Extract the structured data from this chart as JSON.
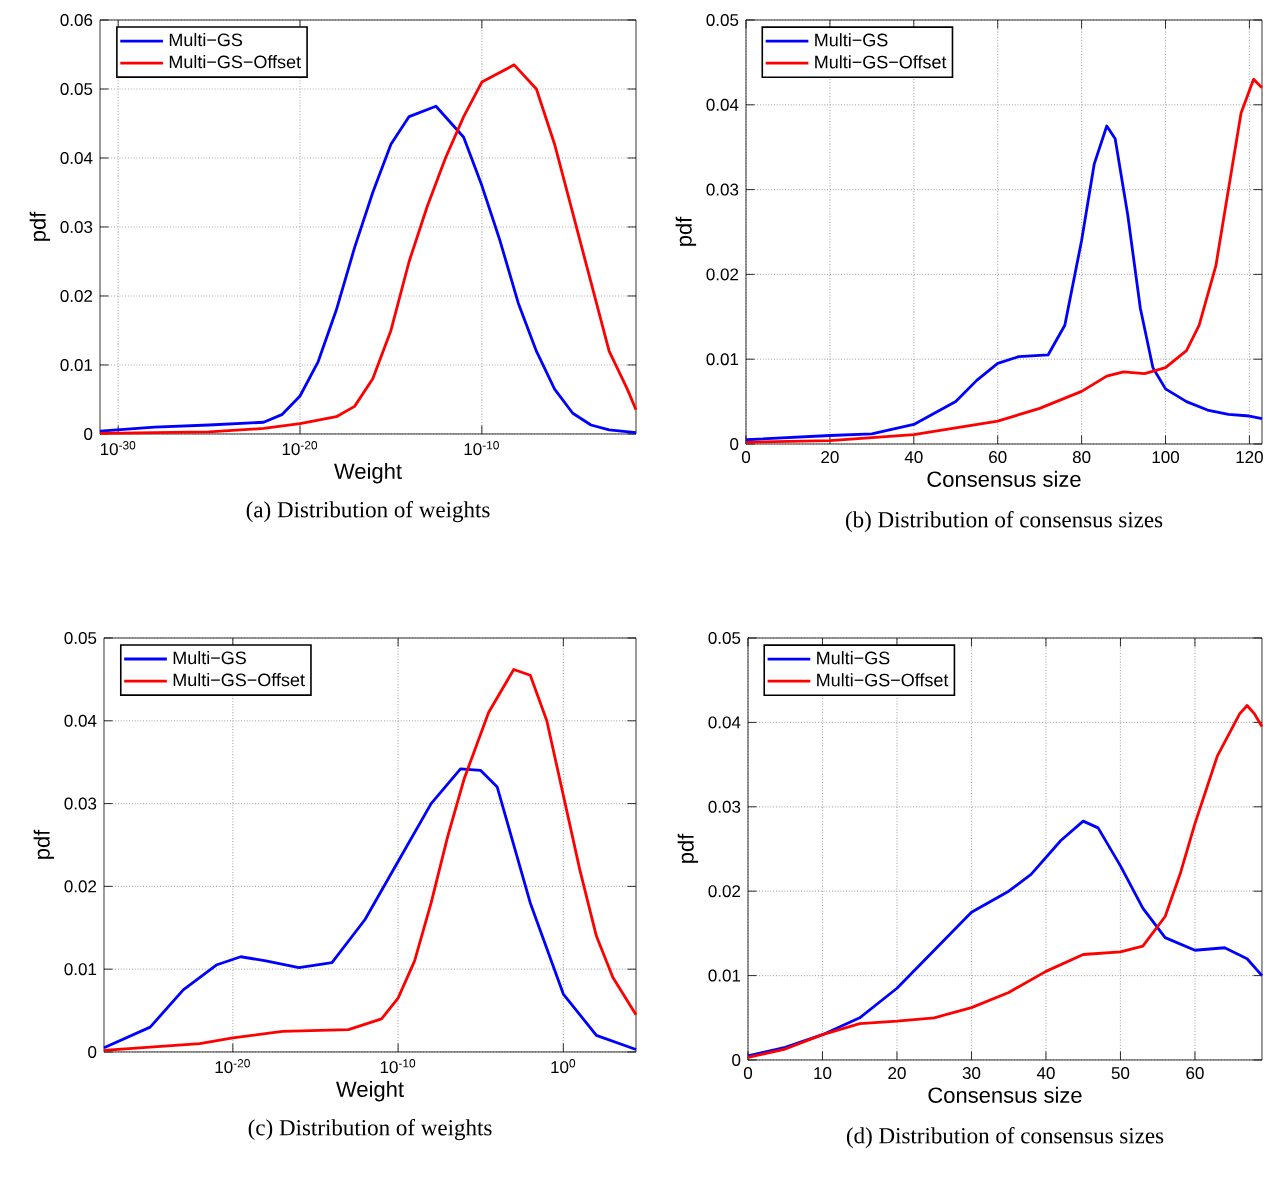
{
  "chart_data": [
    {
      "type": "line",
      "xlabel": "Weight",
      "ylabel": "pdf",
      "log": "x",
      "grid": true,
      "legend": "top left",
      "annotations": [
        "(a)  Distribution of weights"
      ],
      "xlim": [
        1e-31,
        0.03
      ],
      "ylim": [
        0,
        0.06
      ],
      "xticks": [
        {
          "value": 1e-30,
          "label": "10$^{-30}$"
        },
        {
          "value": 1e-20,
          "label": "10$^{-20}$"
        },
        {
          "value": 1e-10,
          "label": "10$^{-10}$"
        }
      ],
      "yticks": [
        0,
        0.01,
        0.02,
        0.03,
        0.04,
        0.05,
        0.06
      ],
      "series": [
        {
          "name": "Multi−GS",
          "color": "#0000ff",
          "x": [
            1e-31,
            1e-28,
            1e-25,
            1e-22,
            1e-21,
            1e-20,
            1e-19,
            1e-18,
            1e-17,
            1e-16,
            1e-15,
            1e-14,
            3e-13,
            1e-11,
            1e-10,
            1e-09,
            1e-08,
            1e-07,
            1e-06,
            1e-05,
            0.0001,
            0.001,
            0.03
          ],
          "values": [
            0.0004,
            0.001,
            0.0013,
            0.0017,
            0.0028,
            0.0055,
            0.0105,
            0.018,
            0.027,
            0.035,
            0.042,
            0.046,
            0.0475,
            0.043,
            0.036,
            0.028,
            0.019,
            0.012,
            0.0065,
            0.003,
            0.0013,
            0.0006,
            0.0002
          ]
        },
        {
          "name": "Multi−GS−Offset",
          "color": "#ff0000",
          "x": [
            1e-31,
            1e-25,
            1e-22,
            1e-20,
            1e-18,
            1e-17,
            1e-16,
            1e-15,
            1e-14,
            1e-13,
            1e-12,
            1e-11,
            1e-10,
            6e-09,
            1e-07,
            1e-06,
            1e-05,
            0.0001,
            0.001,
            0.01,
            0.03
          ],
          "values": [
            0.0001,
            0.0003,
            0.0008,
            0.0015,
            0.0025,
            0.004,
            0.008,
            0.015,
            0.025,
            0.033,
            0.04,
            0.046,
            0.051,
            0.0535,
            0.05,
            0.042,
            0.032,
            0.022,
            0.012,
            0.0065,
            0.0035
          ]
        }
      ]
    },
    {
      "type": "line",
      "xlabel": "Consensus size",
      "ylabel": "pdf",
      "grid": true,
      "legend": "top left",
      "annotations": [
        "(b)  Distribution of consensus sizes"
      ],
      "xlim": [
        0,
        123
      ],
      "ylim": [
        0,
        0.05
      ],
      "xticks": [
        0,
        20,
        40,
        60,
        80,
        100,
        120
      ],
      "yticks": [
        0,
        0.01,
        0.02,
        0.03,
        0.04,
        0.05
      ],
      "series": [
        {
          "name": "Multi−GS",
          "color": "#0000ff",
          "x": [
            0,
            20,
            30,
            40,
            50,
            55,
            60,
            65,
            72,
            76,
            80,
            83,
            86,
            88,
            91,
            94,
            97,
            100,
            105,
            110,
            115,
            120,
            123
          ],
          "values": [
            0.0005,
            0.001,
            0.0012,
            0.0023,
            0.005,
            0.0075,
            0.0095,
            0.0103,
            0.0105,
            0.014,
            0.024,
            0.033,
            0.0375,
            0.036,
            0.027,
            0.016,
            0.009,
            0.0065,
            0.005,
            0.004,
            0.0035,
            0.0033,
            0.003
          ]
        },
        {
          "name": "Multi−GS−Offset",
          "color": "#ff0000",
          "x": [
            0,
            20,
            40,
            60,
            70,
            80,
            86,
            90,
            95,
            100,
            105,
            108,
            112,
            115,
            118,
            121,
            123
          ],
          "values": [
            0.0002,
            0.0004,
            0.0011,
            0.0027,
            0.0042,
            0.0062,
            0.008,
            0.0085,
            0.0083,
            0.009,
            0.011,
            0.014,
            0.021,
            0.03,
            0.039,
            0.043,
            0.042
          ]
        }
      ]
    },
    {
      "type": "line",
      "xlabel": "Weight",
      "ylabel": "pdf",
      "log": "x",
      "grid": true,
      "legend": "top left",
      "annotations": [
        "(c)  Distribution of weights"
      ],
      "xlim": [
        1.6e-28,
        25000.0
      ],
      "ylim": [
        0,
        0.05
      ],
      "xticks": [
        {
          "value": 1e-20,
          "label": "10$^{-20}$"
        },
        {
          "value": 1e-10,
          "label": "10$^{-10}$"
        },
        {
          "value": 1,
          "label": "10$^{0}$"
        }
      ],
      "yticks": [
        0,
        0.01,
        0.02,
        0.03,
        0.04,
        0.05
      ],
      "series": [
        {
          "name": "Multi−GS",
          "color": "#0000ff",
          "x": [
            1.6e-28,
            1e-25,
            1e-23,
            1e-21,
            3e-20,
            1e-18,
            1e-16,
            1e-14,
            1e-12,
            1e-10,
            1e-08,
            6e-07,
            1e-05,
            0.0001,
            0.01,
            1,
            100.0,
            25000.0
          ],
          "values": [
            0.0005,
            0.003,
            0.0075,
            0.0105,
            0.0115,
            0.011,
            0.0102,
            0.0108,
            0.016,
            0.023,
            0.03,
            0.0342,
            0.034,
            0.032,
            0.018,
            0.007,
            0.002,
            0.0003
          ]
        },
        {
          "name": "Multi−GS−Offset",
          "color": "#ff0000",
          "x": [
            1.6e-28,
            1e-22,
            1e-20,
            1e-17,
            1e-13,
            1e-11,
            1e-10,
            1e-09,
            1e-08,
            1e-07,
            1e-06,
            3e-05,
            0.001,
            0.01,
            0.1,
            1,
            10,
            100,
            1000,
            25000.0
          ],
          "values": [
            0.0002,
            0.001,
            0.0017,
            0.0025,
            0.0027,
            0.004,
            0.0065,
            0.011,
            0.018,
            0.026,
            0.033,
            0.041,
            0.0462,
            0.0455,
            0.04,
            0.031,
            0.022,
            0.014,
            0.009,
            0.0045
          ]
        }
      ]
    },
    {
      "type": "line",
      "xlabel": "Consensus size",
      "ylabel": "pdf",
      "grid": true,
      "legend": "top left",
      "annotations": [
        "(d)  Distribution of consensus sizes"
      ],
      "xlim": [
        0,
        69
      ],
      "ylim": [
        0,
        0.05
      ],
      "xticks": [
        0,
        10,
        20,
        30,
        40,
        50,
        60
      ],
      "yticks": [
        0,
        0.01,
        0.02,
        0.03,
        0.04,
        0.05
      ],
      "series": [
        {
          "name": "Multi−GS",
          "color": "#0000ff",
          "x": [
            0,
            5,
            10,
            15,
            20,
            25,
            30,
            35,
            38,
            42,
            45,
            47,
            50,
            53,
            56,
            60,
            64,
            67,
            69
          ],
          "values": [
            0.0005,
            0.0015,
            0.003,
            0.005,
            0.0085,
            0.013,
            0.0175,
            0.02,
            0.022,
            0.026,
            0.0283,
            0.0275,
            0.023,
            0.018,
            0.0145,
            0.013,
            0.0133,
            0.012,
            0.01
          ]
        },
        {
          "name": "Multi−GS−Offset",
          "color": "#ff0000",
          "x": [
            0,
            5,
            10,
            15,
            20,
            25,
            30,
            35,
            40,
            45,
            50,
            53,
            56,
            58,
            60,
            63,
            66,
            67,
            68,
            69
          ],
          "values": [
            0.0003,
            0.0013,
            0.003,
            0.0043,
            0.0046,
            0.005,
            0.0062,
            0.008,
            0.0105,
            0.0125,
            0.0128,
            0.0135,
            0.017,
            0.022,
            0.028,
            0.036,
            0.041,
            0.042,
            0.041,
            0.0395
          ]
        }
      ]
    }
  ]
}
